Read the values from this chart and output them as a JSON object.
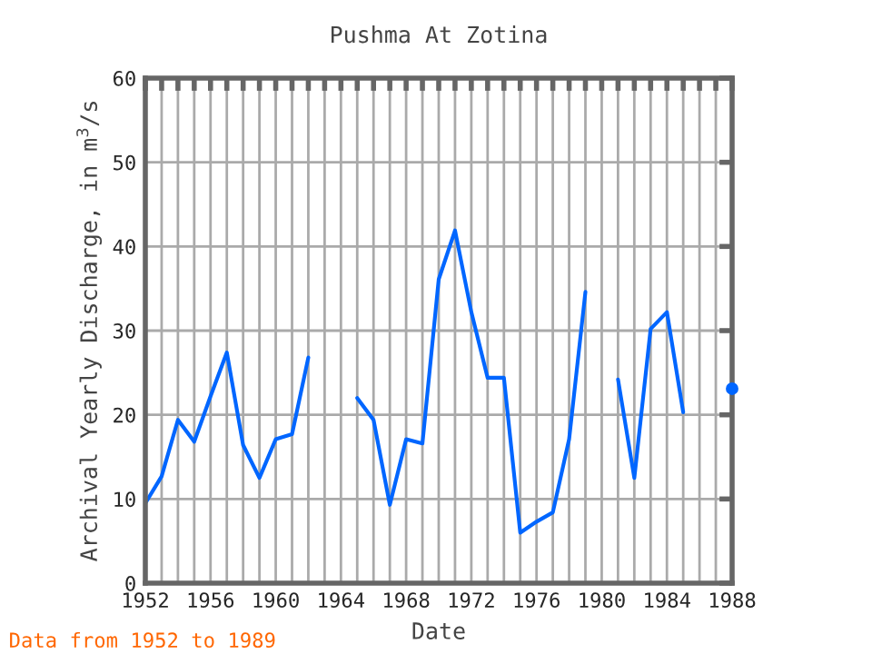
{
  "chart_data": {
    "type": "line",
    "title": "Pushma At Zotina",
    "xlabel": "Date",
    "ylabel": "Archival Yearly Discharge, in m$^{3}$/s",
    "x": [
      1952,
      1953,
      1954,
      1955,
      1956,
      1957,
      1958,
      1959,
      1960,
      1961,
      1962,
      1963,
      1964,
      1965,
      1966,
      1967,
      1968,
      1969,
      1970,
      1971,
      1972,
      1973,
      1974,
      1975,
      1976,
      1977,
      1978,
      1979,
      1980,
      1981,
      1982,
      1983,
      1984,
      1985,
      1986,
      1987,
      1988
    ],
    "series": [
      {
        "color": "#0066ff",
        "values": [
          9.5,
          12.7,
          19.4,
          16.8,
          22.2,
          27.4,
          16.4,
          12.5,
          17.1,
          17.7,
          26.8,
          null,
          null,
          22.0,
          19.4,
          9.3,
          17.1,
          16.6,
          36.1,
          41.9,
          32.2,
          24.4,
          24.4,
          6.0,
          7.3,
          8.4,
          17.1,
          34.6,
          null,
          24.2,
          12.5,
          30.2,
          32.2,
          20.3,
          null,
          null,
          23.1
        ]
      }
    ],
    "xlim": [
      1952,
      1988
    ],
    "ylim": [
      0,
      60
    ],
    "xticks": [
      1952,
      {
        "value": 1953,
        "label": null
      },
      {
        "value": 1954,
        "label": null
      },
      {
        "value": 1955,
        "label": null
      },
      1956,
      {
        "value": 1957,
        "label": null
      },
      {
        "value": 1958,
        "label": null
      },
      {
        "value": 1959,
        "label": null
      },
      1960,
      {
        "value": 1961,
        "label": null
      },
      {
        "value": 1962,
        "label": null
      },
      {
        "value": 1963,
        "label": null
      },
      1964,
      {
        "value": 1965,
        "label": null
      },
      {
        "value": 1966,
        "label": null
      },
      {
        "value": 1967,
        "label": null
      },
      1968,
      {
        "value": 1969,
        "label": null
      },
      {
        "value": 1970,
        "label": null
      },
      {
        "value": 1971,
        "label": null
      },
      1972,
      {
        "value": 1973,
        "label": null
      },
      {
        "value": 1974,
        "label": null
      },
      {
        "value": 1975,
        "label": null
      },
      1976,
      {
        "value": 1977,
        "label": null
      },
      {
        "value": 1978,
        "label": null
      },
      {
        "value": 1979,
        "label": null
      },
      1980,
      {
        "value": 1981,
        "label": null
      },
      {
        "value": 1982,
        "label": null
      },
      {
        "value": 1983,
        "label": null
      },
      1984,
      {
        "value": 1985,
        "label": null
      },
      {
        "value": 1986,
        "label": null
      },
      {
        "value": 1987,
        "label": null
      },
      1988
    ],
    "yticks": [
      0,
      10,
      20,
      30,
      40,
      50,
      60
    ],
    "grid": true,
    "marker": "none",
    "line_style": "solid",
    "annotations": [
      "Data from 1952 to 1989"
    ]
  }
}
